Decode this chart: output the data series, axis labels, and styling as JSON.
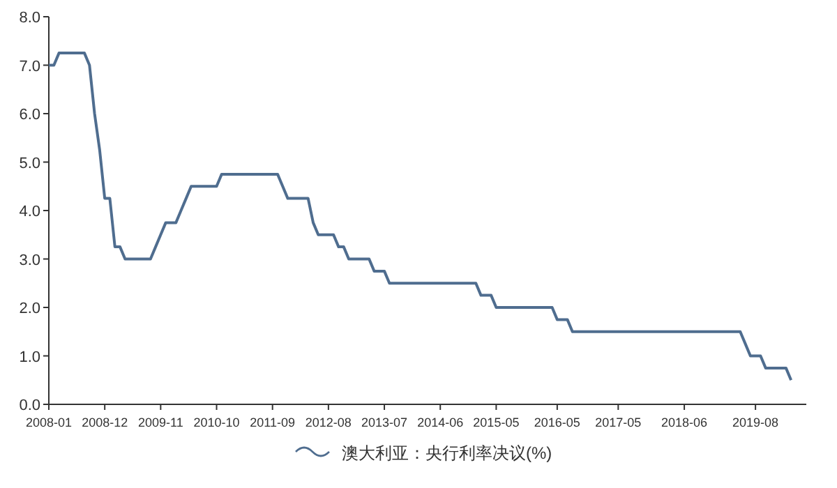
{
  "chart_data": {
    "type": "line",
    "legend": "bottom",
    "x": [
      "2008-01",
      "2008-02",
      "2008-03",
      "2008-08",
      "2008-09",
      "2008-10",
      "2008-11",
      "2008-12",
      "2009-01",
      "2009-02",
      "2009-03",
      "2009-04",
      "2009-09",
      "2009-10",
      "2009-11",
      "2009-12",
      "2010-02",
      "2010-03",
      "2010-04",
      "2010-05",
      "2010-10",
      "2010-11",
      "2011-10",
      "2011-11",
      "2011-12",
      "2012-04",
      "2012-05",
      "2012-06",
      "2012-09",
      "2012-10",
      "2012-11",
      "2012-12",
      "2013-04",
      "2013-05",
      "2013-07",
      "2013-08",
      "2015-01",
      "2015-02",
      "2015-04",
      "2015-05",
      "2016-04",
      "2016-05",
      "2016-07",
      "2016-08",
      "2019-05",
      "2019-06",
      "2019-07",
      "2019-09",
      "2019-10",
      "2020-02",
      "2020-03"
    ],
    "series": [
      {
        "name": "澳大利亚：央行利率决议(%)",
        "color": "#4f6d8f",
        "values": [
          7.0,
          7.0,
          7.25,
          7.25,
          7.0,
          6.0,
          5.25,
          4.25,
          4.25,
          3.25,
          3.25,
          3.0,
          3.0,
          3.25,
          3.5,
          3.75,
          3.75,
          4.0,
          4.25,
          4.5,
          4.5,
          4.75,
          4.75,
          4.5,
          4.25,
          4.25,
          3.75,
          3.5,
          3.5,
          3.25,
          3.25,
          3.0,
          3.0,
          2.75,
          2.75,
          2.5,
          2.5,
          2.25,
          2.25,
          2.0,
          2.0,
          1.75,
          1.75,
          1.5,
          1.5,
          1.25,
          1.0,
          1.0,
          0.75,
          0.75,
          0.5
        ]
      }
    ],
    "xlim": [
      "2008-01",
      "2020-06"
    ],
    "xticks": [
      "2008-01",
      "2008-12",
      "2009-11",
      "2010-10",
      "2011-09",
      "2012-08",
      "2013-07",
      "2014-06",
      "2015-05",
      "2016-05",
      "2017-05",
      "2018-06",
      "2019-08"
    ],
    "ylim": [
      0,
      8
    ],
    "yticks": [
      {
        "value": 0,
        "label": "0.0"
      },
      {
        "value": 1,
        "label": "1.0"
      },
      {
        "value": 2,
        "label": "2.0"
      },
      {
        "value": 3,
        "label": "3.0"
      },
      {
        "value": 4,
        "label": "4.0"
      },
      {
        "value": 5,
        "label": "5.0"
      },
      {
        "value": 6,
        "label": "6.0"
      },
      {
        "value": 7,
        "label": "7.0"
      },
      {
        "value": 8,
        "label": "8.0"
      }
    ]
  }
}
